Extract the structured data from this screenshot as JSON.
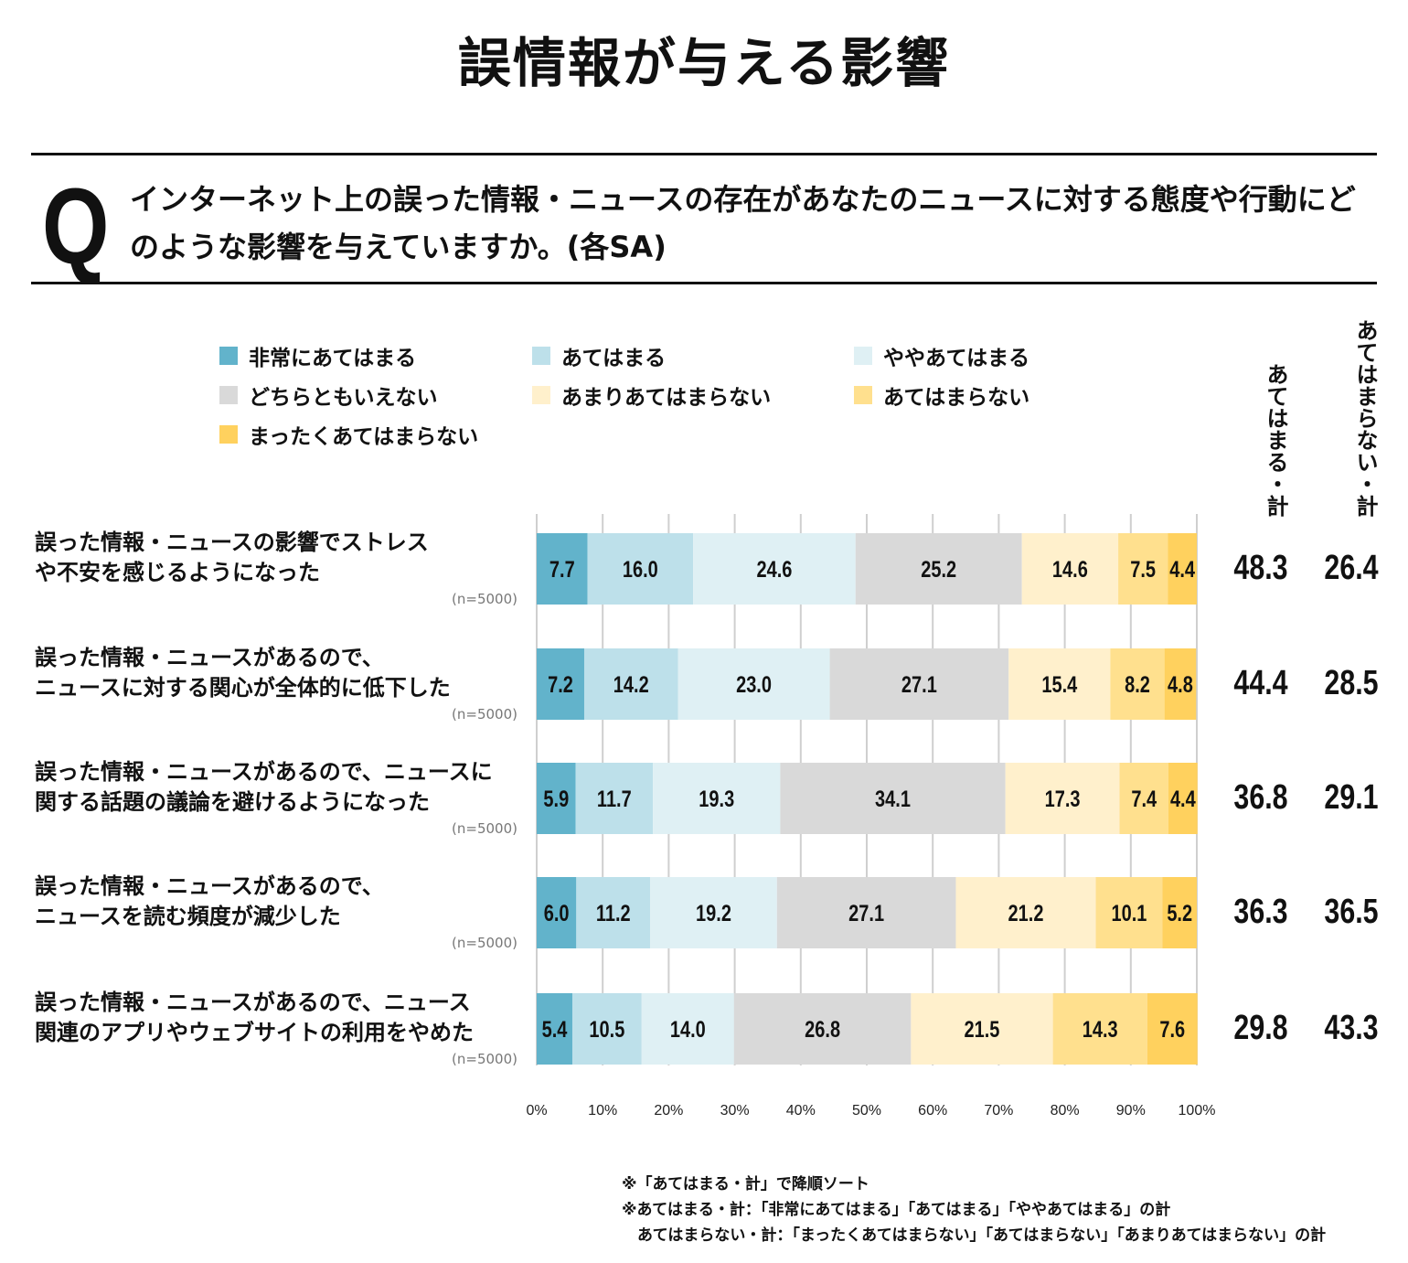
{
  "title": "誤情報が与える影響",
  "question": {
    "mark": "Q",
    "text": "インターネット上の誤った情報・ニュースの存在があなたのニュースに対する態度や行動にどのような影響を与えていますか。(各SA)"
  },
  "chart_data": {
    "type": "bar",
    "stacked": true,
    "orientation": "horizontal",
    "title": "誤情報が与える影響",
    "xlim": [
      0,
      100
    ],
    "x_ticks": [
      "0%",
      "10%",
      "20%",
      "30%",
      "40%",
      "50%",
      "60%",
      "70%",
      "80%",
      "90%",
      "100%"
    ],
    "legend_position": "top",
    "series": [
      {
        "name": "非常にあてはまる",
        "color": "#62b3cb",
        "values": [
          7.7,
          7.2,
          5.9,
          6.0,
          5.4
        ]
      },
      {
        "name": "あてはまる",
        "color": "#bde0ea",
        "values": [
          16.0,
          14.2,
          11.7,
          11.2,
          10.5
        ]
      },
      {
        "name": "ややあてはまる",
        "color": "#dff0f4",
        "values": [
          24.6,
          23.0,
          19.3,
          19.2,
          14.0
        ]
      },
      {
        "name": "どちらともいえない",
        "color": "#d9d9d9",
        "values": [
          25.2,
          27.1,
          34.1,
          27.1,
          26.8
        ]
      },
      {
        "name": "あまりあてはまらない",
        "color": "#fff0cc",
        "values": [
          14.6,
          15.4,
          17.3,
          21.2,
          21.5
        ]
      },
      {
        "name": "あてはまらない",
        "color": "#ffe08e",
        "values": [
          7.5,
          8.2,
          7.4,
          10.1,
          14.3
        ]
      },
      {
        "name": "まったくあてはまらない",
        "color": "#ffd15e",
        "values": [
          4.4,
          4.8,
          4.4,
          5.2,
          7.6
        ]
      }
    ],
    "categories": [
      {
        "lines": [
          "誤った情報・ニュースの影響でストレス",
          "や不安を感じるようになった"
        ],
        "n": "(n=5000)"
      },
      {
        "lines": [
          "誤った情報・ニュースがあるので、",
          "ニュースに対する関心が全体的に低下した"
        ],
        "n": "(n=5000)"
      },
      {
        "lines": [
          "誤った情報・ニュースがあるので、ニュースに",
          "関する話題の議論を避けるようになった"
        ],
        "n": "(n=5000)"
      },
      {
        "lines": [
          "誤った情報・ニュースがあるので、",
          "ニュースを読む頻度が減少した"
        ],
        "n": "(n=5000)"
      },
      {
        "lines": [
          "誤った情報・ニュースがあるので、ニュース",
          "関連のアプリやウェブサイトの利用をやめた"
        ],
        "n": "(n=5000)"
      }
    ],
    "totals_headers": [
      "あてはまる・計",
      "あてはまらない・計"
    ],
    "totals": [
      [
        "48.3",
        "26.4"
      ],
      [
        "44.4",
        "28.5"
      ],
      [
        "36.8",
        "29.1"
      ],
      [
        "36.3",
        "36.5"
      ],
      [
        "29.8",
        "43.3"
      ]
    ]
  },
  "notes": [
    "※「あてはまる・計」で降順ソート",
    "※あてはまる・計：「非常にあてはまる」「あてはまる」「ややあてはまる」の計",
    "　あてはまらない・計：「まったくあてはまらない」「あてはまらない」「あまりあてはまらない」の計"
  ]
}
